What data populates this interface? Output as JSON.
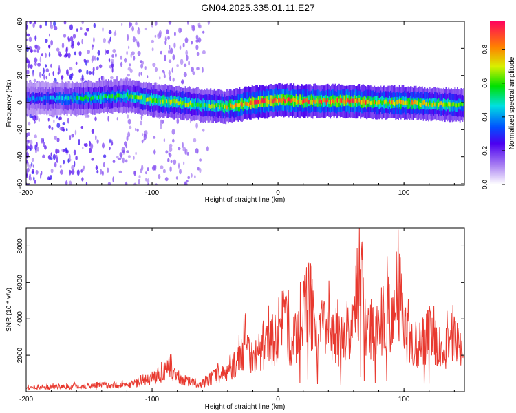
{
  "figure": {
    "title": "GN04.2025.335.01.11.E27"
  },
  "chart_data": [
    {
      "type": "heatmap",
      "xlabel": "Height of straight line (km)",
      "ylabel": "Frequency (Hz)",
      "xlim": [
        -200,
        148
      ],
      "ylim": [
        -61,
        60
      ],
      "xticks": [
        "-200",
        "-100",
        "0",
        "100"
      ],
      "yticks": [
        "60",
        "40",
        "20",
        "0",
        "-20",
        "-40",
        "-60"
      ],
      "colorbar": {
        "label": "Normalized spectral amplitude",
        "range": [
          0,
          0.97
        ],
        "ticks": [
          "0.0",
          "0.2",
          "0.4",
          "0.6",
          "0.8"
        ]
      },
      "ridge": {
        "x": [
          -200,
          -180,
          -160,
          -140,
          -120,
          -100,
          -80,
          -60,
          -40,
          -20,
          0,
          20,
          40,
          60,
          80,
          100,
          120,
          148
        ],
        "frequency": [
          3,
          3,
          3,
          4,
          5,
          2,
          0,
          -2,
          -3,
          0,
          2,
          1,
          1,
          1,
          0,
          0,
          -1,
          -2
        ],
        "peak_amplitude": [
          0.35,
          0.4,
          0.5,
          0.55,
          0.55,
          0.65,
          0.65,
          0.6,
          0.7,
          0.9,
          0.9,
          0.85,
          0.8,
          0.85,
          0.75,
          0.75,
          0.7,
          0.6
        ]
      },
      "grid": false
    },
    {
      "type": "line",
      "xlabel": "Height of straight line (km)",
      "ylabel": "SNR (10 * v/v)",
      "xlim": [
        -200,
        148
      ],
      "ylim": [
        0,
        9000
      ],
      "xticks": [
        "-200",
        "-100",
        "0",
        "100"
      ],
      "yticks": [
        "2000",
        "4000",
        "6000",
        "8000"
      ],
      "series": [
        {
          "color": "#e8392f",
          "x": [
            -200,
            -180,
            -160,
            -140,
            -120,
            -110,
            -100,
            -90,
            -85,
            -80,
            -75,
            -70,
            -60,
            -50,
            -40,
            -30,
            -25,
            -20,
            -10,
            0,
            5,
            10,
            20,
            25,
            30,
            40,
            50,
            60,
            65,
            70,
            80,
            90,
            95,
            100,
            110,
            120,
            130,
            140,
            148
          ],
          "values": [
            300,
            350,
            400,
            500,
            500,
            700,
            1000,
            1500,
            1900,
            1100,
            900,
            700,
            600,
            1200,
            1400,
            2600,
            3800,
            2500,
            3500,
            4200,
            6500,
            3200,
            5500,
            7000,
            4000,
            5200,
            3600,
            5600,
            8500,
            4400,
            5000,
            6200,
            8800,
            4500,
            3500,
            4400,
            3200,
            3800,
            3000
          ]
        }
      ],
      "grid": false
    }
  ]
}
